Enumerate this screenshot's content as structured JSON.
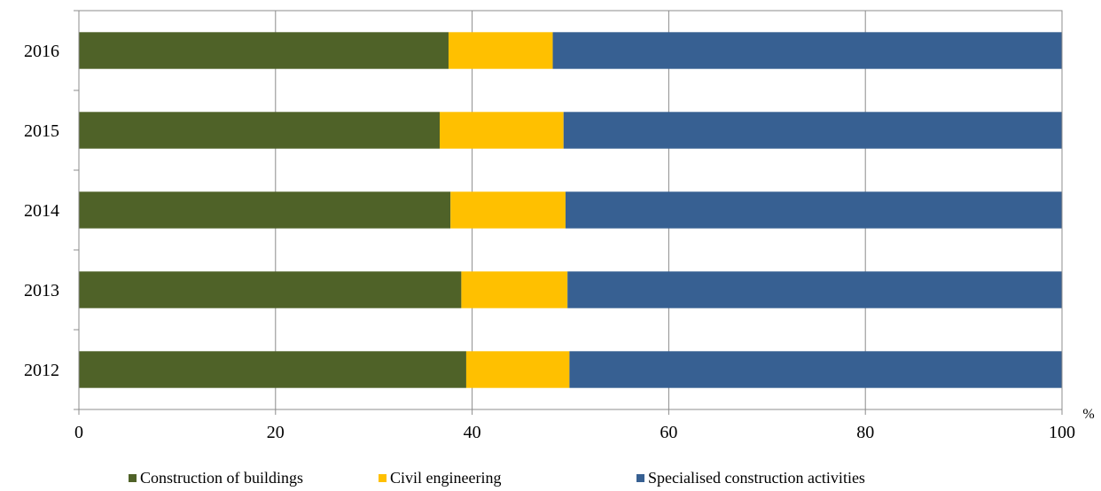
{
  "chart_data": {
    "type": "bar",
    "orientation": "horizontal",
    "stacked": true,
    "categories": [
      "2016",
      "2015",
      "2014",
      "2013",
      "2012"
    ],
    "series": [
      {
        "name": "Construction of buildings",
        "color": "#4f6228",
        "values": [
          37.6,
          36.7,
          37.8,
          38.9,
          39.4
        ]
      },
      {
        "name": "Civil engineering",
        "color": "#ffc000",
        "values": [
          10.6,
          12.6,
          11.7,
          10.8,
          10.5
        ]
      },
      {
        "name": "Specialised construction activities",
        "color": "#376092",
        "values": [
          51.8,
          50.7,
          50.5,
          50.3,
          50.1
        ]
      }
    ],
    "x_ticks": [
      "0",
      "20",
      "40",
      "60",
      "80",
      "100"
    ],
    "xlim": [
      0,
      100
    ],
    "x_unit": "%",
    "grid": true,
    "legend_position": "bottom"
  }
}
